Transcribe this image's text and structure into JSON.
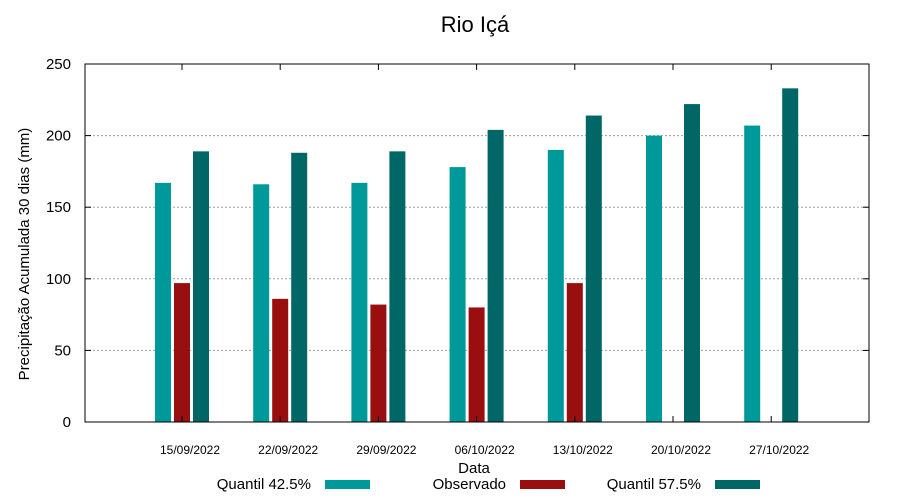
{
  "chart_data": {
    "type": "bar",
    "title": "Rio Içá",
    "xlabel": "Data",
    "ylabel": "Precipitação Acumulada 30 dias (mm)",
    "ylim": [
      0,
      250
    ],
    "yticks": [
      0,
      50,
      100,
      150,
      200,
      250
    ],
    "grid": true,
    "legend_position": "bottom",
    "categories": [
      "15/09/2022",
      "22/09/2022",
      "29/09/2022",
      "06/10/2022",
      "13/10/2022",
      "20/10/2022",
      "27/10/2022"
    ],
    "series": [
      {
        "name": "Quantil 42.5%",
        "color": "#009999",
        "values": [
          167,
          166,
          167,
          178,
          190,
          200,
          207
        ]
      },
      {
        "name": "Observado",
        "color": "#990f0f",
        "values": [
          97,
          86,
          82,
          80,
          97,
          null,
          null
        ]
      },
      {
        "name": "Quantil 57.5%",
        "color": "#006666",
        "values": [
          189,
          188,
          189,
          204,
          214,
          222,
          233
        ]
      }
    ]
  }
}
